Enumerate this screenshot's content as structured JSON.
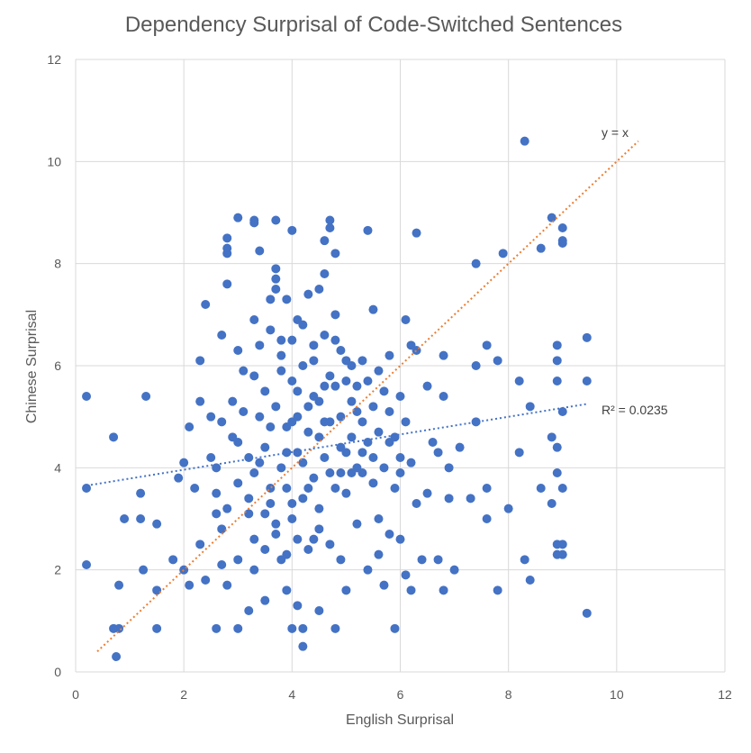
{
  "chart_data": {
    "type": "scatter",
    "title": "Dependency Surprisal of Code-Switched Sentences",
    "xlabel": "English Surprisal",
    "ylabel": "Chinese Surprisal",
    "xlim": [
      0,
      12
    ],
    "ylim": [
      0,
      12
    ],
    "xticks": [
      "0",
      "2",
      "4",
      "6",
      "8",
      "10",
      "12"
    ],
    "yticks": [
      "0",
      "2",
      "4",
      "6",
      "8",
      "10",
      "12"
    ],
    "grid": true,
    "colors": {
      "points": "#4472c4",
      "identity_line": "#ed7d31",
      "trend_line": "#4472c4"
    },
    "series": [
      {
        "points": [
          [
            0.2,
            5.4
          ],
          [
            0.2,
            3.6
          ],
          [
            0.2,
            2.1
          ],
          [
            0.7,
            4.6
          ],
          [
            0.7,
            0.85
          ],
          [
            0.75,
            0.3
          ],
          [
            0.8,
            1.7
          ],
          [
            0.8,
            0.85
          ],
          [
            0.9,
            3.0
          ],
          [
            1.2,
            3.5
          ],
          [
            1.2,
            3.0
          ],
          [
            1.3,
            5.4
          ],
          [
            1.25,
            2.0
          ],
          [
            1.5,
            1.6
          ],
          [
            1.5,
            0.85
          ],
          [
            1.5,
            2.9
          ],
          [
            1.8,
            2.2
          ],
          [
            1.9,
            3.8
          ],
          [
            2.0,
            4.1
          ],
          [
            2.1,
            4.8
          ],
          [
            2.0,
            2.0
          ],
          [
            2.1,
            1.7
          ],
          [
            2.2,
            3.6
          ],
          [
            2.3,
            6.1
          ],
          [
            2.3,
            5.3
          ],
          [
            2.3,
            2.5
          ],
          [
            2.4,
            7.2
          ],
          [
            2.4,
            1.8
          ],
          [
            2.5,
            4.2
          ],
          [
            2.6,
            3.5
          ],
          [
            2.6,
            0.85
          ],
          [
            2.7,
            6.6
          ],
          [
            2.7,
            2.8
          ],
          [
            2.8,
            8.5
          ],
          [
            2.8,
            8.3
          ],
          [
            2.8,
            8.2
          ],
          [
            2.8,
            7.6
          ],
          [
            2.8,
            1.7
          ],
          [
            2.9,
            4.6
          ],
          [
            3.0,
            8.9
          ],
          [
            3.0,
            6.3
          ],
          [
            3.0,
            2.2
          ],
          [
            3.0,
            0.85
          ],
          [
            3.1,
            5.9
          ],
          [
            3.2,
            3.1
          ],
          [
            3.2,
            1.2
          ],
          [
            3.3,
            8.85
          ],
          [
            3.3,
            8.8
          ],
          [
            3.3,
            6.9
          ],
          [
            3.3,
            2.0
          ],
          [
            3.4,
            8.25
          ],
          [
            3.5,
            5.5
          ],
          [
            3.5,
            1.4
          ],
          [
            3.6,
            7.3
          ],
          [
            3.6,
            3.6
          ],
          [
            3.7,
            8.85
          ],
          [
            3.7,
            7.9
          ],
          [
            3.7,
            7.7
          ],
          [
            3.7,
            7.5
          ],
          [
            3.8,
            6.5
          ],
          [
            3.8,
            2.2
          ],
          [
            3.9,
            7.3
          ],
          [
            3.9,
            4.8
          ],
          [
            3.9,
            1.6
          ],
          [
            4.0,
            8.65
          ],
          [
            4.0,
            5.7
          ],
          [
            4.0,
            3.0
          ],
          [
            4.0,
            0.85
          ],
          [
            4.1,
            6.9
          ],
          [
            4.1,
            4.3
          ],
          [
            4.1,
            1.3
          ],
          [
            4.2,
            0.5
          ],
          [
            4.2,
            0.85
          ],
          [
            4.2,
            3.4
          ],
          [
            4.3,
            7.4
          ],
          [
            4.3,
            5.2
          ],
          [
            4.4,
            6.1
          ],
          [
            4.4,
            2.6
          ],
          [
            4.5,
            7.5
          ],
          [
            4.5,
            4.6
          ],
          [
            4.5,
            1.2
          ],
          [
            4.6,
            7.8
          ],
          [
            4.6,
            8.45
          ],
          [
            4.6,
            5.6
          ],
          [
            4.7,
            8.85
          ],
          [
            4.7,
            8.7
          ],
          [
            4.7,
            3.9
          ],
          [
            4.8,
            8.2
          ],
          [
            4.8,
            7.0
          ],
          [
            4.8,
            0.85
          ],
          [
            4.9,
            6.3
          ],
          [
            4.9,
            4.4
          ],
          [
            4.9,
            2.2
          ],
          [
            5.0,
            5.7
          ],
          [
            5.0,
            3.5
          ],
          [
            5.0,
            1.6
          ],
          [
            5.1,
            6.0
          ],
          [
            5.1,
            4.6
          ],
          [
            5.2,
            5.1
          ],
          [
            5.2,
            2.9
          ],
          [
            5.3,
            6.1
          ],
          [
            5.3,
            3.9
          ],
          [
            5.4,
            8.65
          ],
          [
            5.4,
            4.5
          ],
          [
            5.4,
            2.0
          ],
          [
            5.5,
            7.1
          ],
          [
            5.5,
            5.2
          ],
          [
            5.5,
            3.7
          ],
          [
            5.6,
            4.7
          ],
          [
            5.6,
            3.0
          ],
          [
            5.7,
            5.5
          ],
          [
            5.7,
            1.7
          ],
          [
            5.8,
            6.2
          ],
          [
            5.8,
            4.5
          ],
          [
            5.9,
            3.6
          ],
          [
            5.9,
            0.85
          ],
          [
            6.0,
            5.4
          ],
          [
            6.0,
            2.6
          ],
          [
            6.1,
            4.9
          ],
          [
            6.1,
            1.9
          ],
          [
            6.1,
            6.9
          ],
          [
            6.2,
            6.4
          ],
          [
            6.2,
            4.1
          ],
          [
            6.2,
            1.6
          ],
          [
            6.3,
            8.6
          ],
          [
            6.3,
            6.3
          ],
          [
            6.3,
            3.3
          ],
          [
            6.4,
            2.2
          ],
          [
            6.5,
            5.6
          ],
          [
            6.5,
            3.5
          ],
          [
            6.6,
            4.5
          ],
          [
            6.7,
            4.3
          ],
          [
            6.7,
            2.2
          ],
          [
            6.8,
            6.2
          ],
          [
            6.8,
            5.4
          ],
          [
            6.8,
            1.6
          ],
          [
            6.9,
            4.0
          ],
          [
            6.9,
            3.4
          ],
          [
            7.0,
            2.0
          ],
          [
            7.1,
            4.4
          ],
          [
            7.3,
            3.4
          ],
          [
            7.4,
            8.0
          ],
          [
            7.4,
            6.0
          ],
          [
            7.4,
            4.9
          ],
          [
            7.6,
            6.4
          ],
          [
            7.6,
            3.6
          ],
          [
            7.6,
            3.0
          ],
          [
            7.8,
            6.1
          ],
          [
            7.8,
            1.6
          ],
          [
            7.9,
            8.2
          ],
          [
            8.0,
            3.2
          ],
          [
            8.2,
            5.7
          ],
          [
            8.2,
            4.3
          ],
          [
            8.3,
            10.4
          ],
          [
            8.3,
            2.2
          ],
          [
            8.4,
            5.2
          ],
          [
            8.4,
            1.8
          ],
          [
            8.6,
            8.3
          ],
          [
            8.6,
            3.6
          ],
          [
            8.8,
            8.9
          ],
          [
            8.8,
            4.6
          ],
          [
            8.8,
            3.3
          ],
          [
            8.9,
            6.4
          ],
          [
            8.9,
            6.1
          ],
          [
            8.9,
            5.7
          ],
          [
            8.9,
            4.4
          ],
          [
            8.9,
            3.9
          ],
          [
            8.9,
            2.5
          ],
          [
            8.9,
            2.3
          ],
          [
            9.0,
            8.7
          ],
          [
            9.0,
            8.45
          ],
          [
            9.0,
            8.4
          ],
          [
            9.0,
            5.1
          ],
          [
            9.0,
            3.6
          ],
          [
            9.0,
            2.5
          ],
          [
            9.0,
            2.3
          ],
          [
            9.45,
            6.55
          ],
          [
            9.45,
            5.7
          ],
          [
            9.45,
            1.15
          ],
          [
            3.2,
            4.2
          ],
          [
            3.3,
            3.9
          ],
          [
            3.4,
            5.0
          ],
          [
            3.5,
            4.4
          ],
          [
            3.6,
            3.3
          ],
          [
            3.7,
            5.2
          ],
          [
            3.8,
            4.0
          ],
          [
            3.9,
            3.6
          ],
          [
            4.0,
            4.9
          ],
          [
            4.1,
            5.5
          ],
          [
            4.2,
            4.1
          ],
          [
            4.3,
            4.7
          ],
          [
            4.4,
            3.8
          ],
          [
            4.5,
            5.3
          ],
          [
            4.6,
            4.2
          ],
          [
            4.7,
            4.9
          ],
          [
            4.8,
            5.6
          ],
          [
            4.9,
            3.9
          ],
          [
            5.0,
            4.3
          ],
          [
            5.1,
            5.3
          ],
          [
            5.2,
            4.0
          ],
          [
            5.3,
            4.9
          ],
          [
            5.4,
            5.7
          ],
          [
            5.5,
            4.2
          ],
          [
            3.0,
            4.5
          ],
          [
            3.1,
            5.1
          ],
          [
            3.2,
            3.4
          ],
          [
            3.3,
            5.8
          ],
          [
            3.4,
            4.1
          ],
          [
            3.5,
            3.1
          ],
          [
            3.6,
            4.8
          ],
          [
            3.7,
            2.9
          ],
          [
            3.8,
            5.9
          ],
          [
            3.9,
            4.3
          ],
          [
            4.0,
            3.3
          ],
          [
            4.1,
            5.0
          ],
          [
            4.2,
            6.0
          ],
          [
            4.3,
            3.6
          ],
          [
            4.4,
            5.4
          ],
          [
            4.5,
            3.2
          ],
          [
            4.6,
            4.9
          ],
          [
            4.7,
            5.8
          ],
          [
            4.8,
            3.6
          ],
          [
            4.9,
            5.0
          ],
          [
            5.0,
            6.1
          ],
          [
            5.1,
            3.9
          ],
          [
            5.2,
            5.6
          ],
          [
            5.3,
            4.3
          ],
          [
            2.6,
            4.0
          ],
          [
            2.7,
            4.9
          ],
          [
            2.8,
            3.2
          ],
          [
            2.9,
            5.3
          ],
          [
            3.0,
            3.7
          ],
          [
            2.5,
            5.0
          ],
          [
            2.6,
            3.1
          ],
          [
            2.7,
            2.1
          ],
          [
            5.6,
            5.9
          ],
          [
            5.7,
            4.0
          ],
          [
            5.8,
            5.1
          ],
          [
            5.9,
            4.6
          ],
          [
            6.0,
            3.9
          ],
          [
            5.6,
            2.3
          ],
          [
            5.8,
            2.7
          ],
          [
            6.0,
            4.2
          ],
          [
            3.4,
            6.4
          ],
          [
            3.6,
            6.7
          ],
          [
            3.8,
            6.2
          ],
          [
            4.0,
            6.5
          ],
          [
            4.2,
            6.8
          ],
          [
            4.4,
            6.4
          ],
          [
            4.6,
            6.6
          ],
          [
            4.8,
            6.5
          ],
          [
            3.3,
            2.6
          ],
          [
            3.5,
            2.4
          ],
          [
            3.7,
            2.7
          ],
          [
            3.9,
            2.3
          ],
          [
            4.1,
            2.6
          ],
          [
            4.3,
            2.4
          ],
          [
            4.5,
            2.8
          ],
          [
            4.7,
            2.5
          ]
        ]
      }
    ],
    "identity_line": {
      "label": "y = x",
      "from": [
        0.4,
        0.4
      ],
      "to": [
        10.4,
        10.4
      ]
    },
    "trendline": {
      "label": "R² = 0.0235",
      "from": [
        0.2,
        3.65
      ],
      "to": [
        9.45,
        5.25
      ]
    }
  }
}
